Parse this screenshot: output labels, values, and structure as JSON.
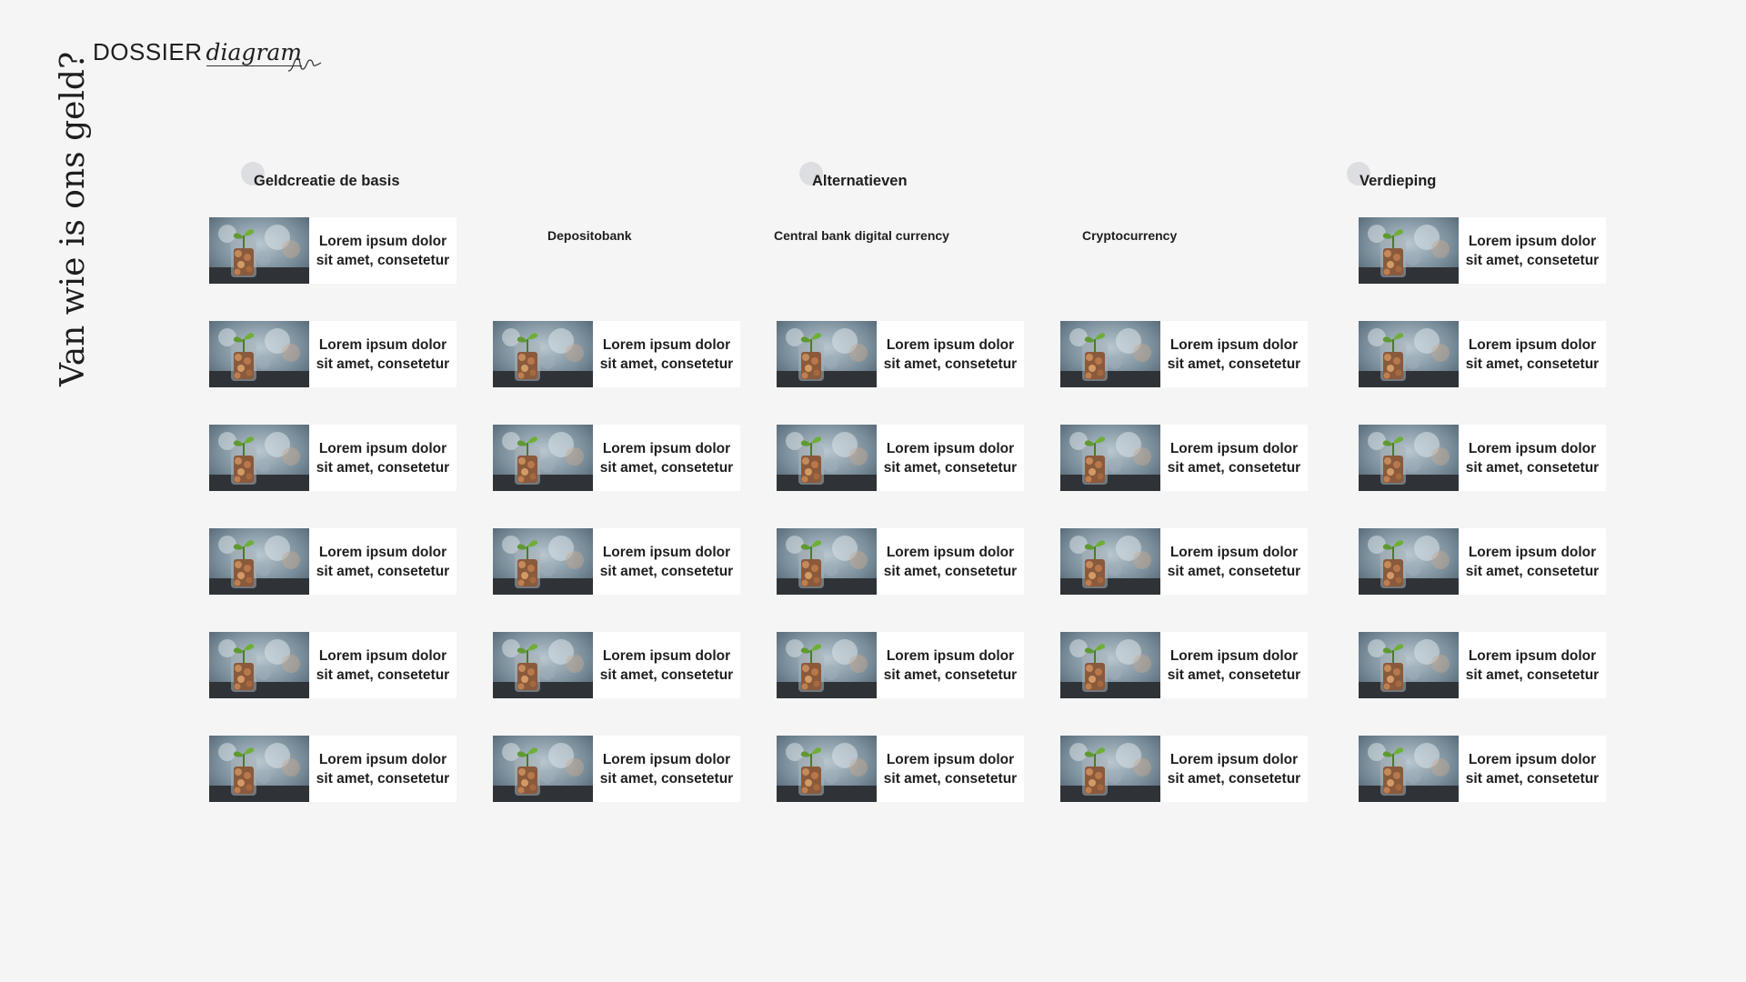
{
  "logo": {
    "word": "DOSSIER",
    "script": "diagram"
  },
  "page_title": "Van wie is ons geld?",
  "sections": [
    {
      "label": "Geldcreatie de basis"
    },
    {
      "label": "Alternatieven"
    },
    {
      "label": "Verdieping"
    }
  ],
  "subsections": [
    {
      "label": "Depositobank"
    },
    {
      "label": "Central bank digital currency"
    },
    {
      "label": "Cryptocurrency"
    }
  ],
  "card_text": "Lorem ipsum dolor sit amet, consetetur",
  "card_image_icon": "plant-in-coin-jar-photo",
  "columns": [
    {
      "id": "geldcreatie",
      "cards": 6
    },
    {
      "id": "depositobank",
      "cards": 5
    },
    {
      "id": "cbdc",
      "cards": 5
    },
    {
      "id": "cryptocurrency",
      "cards": 5
    },
    {
      "id": "verdieping",
      "cards": 6
    }
  ]
}
